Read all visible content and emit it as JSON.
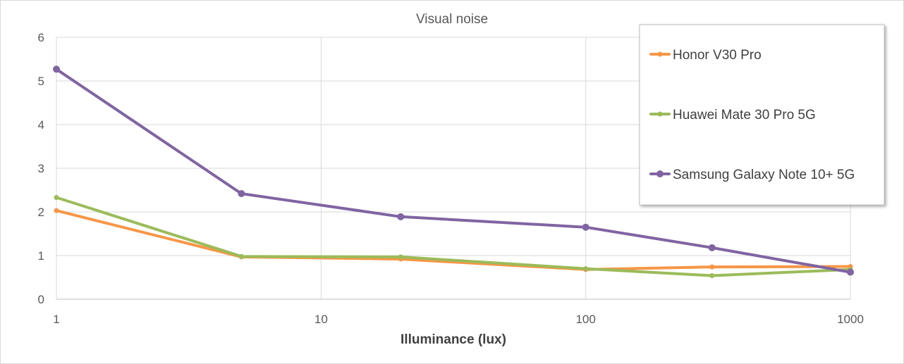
{
  "chart_data": {
    "type": "line",
    "title": "Visual noise",
    "xlabel": "Illuminance (lux)",
    "ylabel": "",
    "x_scale": "log",
    "xlim": [
      1,
      1000
    ],
    "ylim": [
      0,
      6
    ],
    "x_ticks": [
      "1",
      "10",
      "100",
      "1000"
    ],
    "y_ticks": [
      "0",
      "1",
      "2",
      "3",
      "4",
      "5",
      "6"
    ],
    "grid": true,
    "legend_position": "top-right",
    "x": [
      1,
      5,
      20,
      100,
      300,
      1000
    ],
    "series": [
      {
        "name": "Honor V30 Pro",
        "color": "#f79646",
        "values": [
          2.03,
          0.97,
          0.92,
          0.68,
          0.74,
          0.75
        ]
      },
      {
        "name": "Huawei Mate 30 Pro 5G",
        "color": "#9bbb59",
        "values": [
          2.33,
          0.98,
          0.97,
          0.7,
          0.54,
          0.68
        ]
      },
      {
        "name": "Samsung Galaxy Note 10+ 5G",
        "color": "#8064a2",
        "values": [
          5.27,
          2.42,
          1.89,
          1.65,
          1.18,
          0.62
        ]
      }
    ]
  }
}
